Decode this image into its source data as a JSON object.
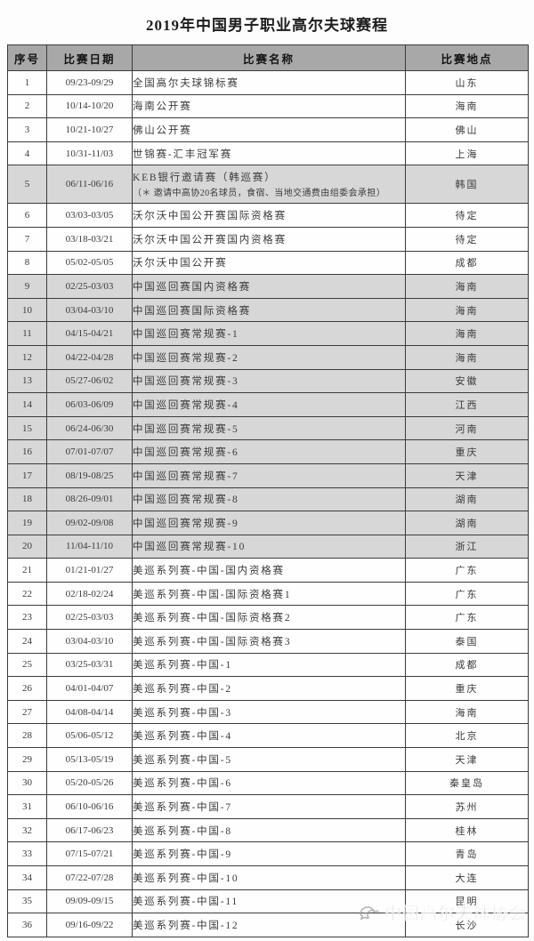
{
  "page": {
    "title": "2019年中国男子职业高尔夫球赛程"
  },
  "colors": {
    "header_background": "#a8a8a8",
    "shaded_row_background": "#d7d7d7",
    "border": "#3b3b3b",
    "watermark_gray": "#a0a0a0"
  },
  "table": {
    "headers": [
      "序号",
      "比赛日期",
      "比赛名称",
      "比赛地点"
    ],
    "rows": [
      {
        "no": "1",
        "date": "09/23-09/29",
        "name": "全国高尔夫球锦标赛",
        "location": "山东",
        "shaded": false
      },
      {
        "no": "2",
        "date": "10/14-10/20",
        "name": "海南公开赛",
        "location": "海南",
        "shaded": false
      },
      {
        "no": "3",
        "date": "10/21-10/27",
        "name": "佛山公开赛",
        "location": "佛山",
        "shaded": false
      },
      {
        "no": "4",
        "date": "10/31-11/03",
        "name": "世锦赛-汇丰冠军赛",
        "location": "上海",
        "shaded": false
      },
      {
        "no": "5",
        "date": "06/11-06/16",
        "name": "KEB银行邀请赛（韩巡赛）",
        "note": "（＊ 邀请中高协20名球员，食宿、当地交通费由组委会承担）",
        "location": "韩国",
        "shaded": true
      },
      {
        "no": "6",
        "date": "03/03-03/05",
        "name": "沃尔沃中国公开赛国际资格赛",
        "location": "待定",
        "shaded": false
      },
      {
        "no": "7",
        "date": "03/18-03/21",
        "name": "沃尔沃中国公开赛国内资格赛",
        "location": "待定",
        "shaded": false
      },
      {
        "no": "8",
        "date": "05/02-05/05",
        "name": "沃尔沃中国公开赛",
        "location": "成都",
        "shaded": false
      },
      {
        "no": "9",
        "date": "02/25-03/03",
        "name": "中国巡回赛国内资格赛",
        "location": "海南",
        "shaded": true
      },
      {
        "no": "10",
        "date": "03/04-03/10",
        "name": "中国巡回赛国际资格赛",
        "location": "海南",
        "shaded": true
      },
      {
        "no": "11",
        "date": "04/15-04/21",
        "name": "中国巡回赛常规赛-1",
        "location": "海南",
        "shaded": true
      },
      {
        "no": "12",
        "date": "04/22-04/28",
        "name": "中国巡回赛常规赛-2",
        "location": "海南",
        "shaded": true
      },
      {
        "no": "13",
        "date": "05/27-06/02",
        "name": "中国巡回赛常规赛-3",
        "location": "安徽",
        "shaded": true
      },
      {
        "no": "14",
        "date": "06/03-06/09",
        "name": "中国巡回赛常规赛-4",
        "location": "江西",
        "shaded": true
      },
      {
        "no": "15",
        "date": "06/24-06/30",
        "name": "中国巡回赛常规赛-5",
        "location": "河南",
        "shaded": true
      },
      {
        "no": "16",
        "date": "07/01-07/07",
        "name": "中国巡回赛常规赛-6",
        "location": "重庆",
        "shaded": true
      },
      {
        "no": "17",
        "date": "08/19-08/25",
        "name": "中国巡回赛常规赛-7",
        "location": "天津",
        "shaded": true
      },
      {
        "no": "18",
        "date": "08/26-09/01",
        "name": "中国巡回赛常规赛-8",
        "location": "湖南",
        "shaded": true
      },
      {
        "no": "19",
        "date": "09/02-09/08",
        "name": "中国巡回赛常规赛-9",
        "location": "湖南",
        "shaded": true
      },
      {
        "no": "20",
        "date": "11/04-11/10",
        "name": "中国巡回赛常规赛-10",
        "location": "浙江",
        "shaded": true
      },
      {
        "no": "21",
        "date": "01/21-01/27",
        "name": "美巡系列赛-中国-国内资格赛",
        "location": "广东",
        "shaded": false
      },
      {
        "no": "22",
        "date": "02/18-02/24",
        "name": "美巡系列赛-中国-国际资格赛1",
        "location": "广东",
        "shaded": false
      },
      {
        "no": "23",
        "date": "02/25-03/03",
        "name": "美巡系列赛-中国-国际资格赛2",
        "location": "广东",
        "shaded": false
      },
      {
        "no": "24",
        "date": "03/04-03/10",
        "name": "美巡系列赛-中国-国际资格赛3",
        "location": "泰国",
        "shaded": false
      },
      {
        "no": "25",
        "date": "03/25-03/31",
        "name": "美巡系列赛-中国-1",
        "location": "成都",
        "shaded": false
      },
      {
        "no": "26",
        "date": "04/01-04/07",
        "name": "美巡系列赛-中国-2",
        "location": "重庆",
        "shaded": false
      },
      {
        "no": "27",
        "date": "04/08-04/14",
        "name": "美巡系列赛-中国-3",
        "location": "海南",
        "shaded": false
      },
      {
        "no": "28",
        "date": "05/06-05/12",
        "name": "美巡系列赛-中国-4",
        "location": "北京",
        "shaded": false
      },
      {
        "no": "29",
        "date": "05/13-05/19",
        "name": "美巡系列赛-中国-5",
        "location": "天津",
        "shaded": false
      },
      {
        "no": "30",
        "date": "05/20-05/26",
        "name": "美巡系列赛-中国-6",
        "location": "秦皇岛",
        "shaded": false
      },
      {
        "no": "31",
        "date": "06/10-06/16",
        "name": "美巡系列赛-中国-7",
        "location": "苏州",
        "shaded": false
      },
      {
        "no": "32",
        "date": "06/17-06/23",
        "name": "美巡系列赛-中国-8",
        "location": "桂林",
        "shaded": false
      },
      {
        "no": "33",
        "date": "07/15-07/21",
        "name": "美巡系列赛-中国-9",
        "location": "青岛",
        "shaded": false
      },
      {
        "no": "34",
        "date": "07/22-07/28",
        "name": "美巡系列赛-中国-10",
        "location": "大连",
        "shaded": false
      },
      {
        "no": "35",
        "date": "09/09-09/15",
        "name": "美巡系列赛-中国-11",
        "location": "昆明",
        "shaded": false
      },
      {
        "no": "36",
        "date": "09/16-09/22",
        "name": "美巡系列赛-中国-12",
        "location": "长沙",
        "shaded": false
      }
    ]
  },
  "watermark": {
    "icon": "golf-association-logo",
    "text": "中国高尔夫球协会"
  }
}
